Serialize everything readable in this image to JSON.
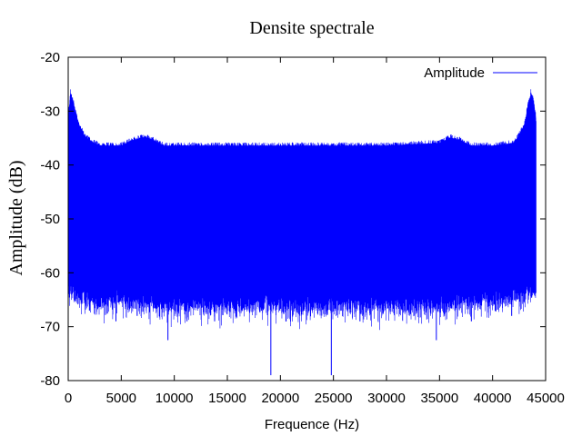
{
  "chart_data": {
    "type": "line",
    "title": "Densite spectrale",
    "xlabel": "Frequence (Hz)",
    "ylabel": "Amplitude (dB)",
    "xlim": [
      0,
      45000
    ],
    "ylim": [
      -80,
      -20
    ],
    "x_ticks": [
      0,
      5000,
      10000,
      15000,
      20000,
      25000,
      30000,
      35000,
      40000,
      45000
    ],
    "y_ticks": [
      -20,
      -30,
      -40,
      -50,
      -60,
      -70,
      -80
    ],
    "grid": false,
    "legend_position": "top-right",
    "series": [
      {
        "name": "Amplitude",
        "color": "#0000ff",
        "x_range": [
          0,
          44100
        ],
        "upper_envelope": {
          "x": [
            0,
            200,
            500,
            1000,
            1500,
            2000,
            3000,
            4000,
            5000,
            6000,
            7000,
            7500,
            8000,
            9000,
            10000,
            15000,
            20000,
            25000,
            30000,
            35000,
            36000,
            37000,
            38000,
            40000,
            42000,
            42500,
            43000,
            43300,
            43600,
            43900,
            44100
          ],
          "y": [
            -32,
            -27,
            -29,
            -33,
            -35,
            -36,
            -37,
            -37,
            -37,
            -36,
            -35.5,
            -35.5,
            -36,
            -37,
            -37,
            -37,
            -37,
            -37,
            -37,
            -36.5,
            -35.5,
            -36,
            -37,
            -37,
            -36.5,
            -35,
            -33,
            -30,
            -27,
            -29,
            -32
          ]
        },
        "lower_envelope": {
          "x": [
            0,
            2000,
            5000,
            10000,
            15000,
            20000,
            25000,
            30000,
            35000,
            40000,
            44100
          ],
          "y": [
            -63,
            -65,
            -65,
            -66,
            -66,
            -66,
            -66,
            -66,
            -66,
            -65,
            -63
          ]
        },
        "dips": [
          {
            "x": 2000,
            "y": -67
          },
          {
            "x": 4500,
            "y": -69
          },
          {
            "x": 6500,
            "y": -68
          },
          {
            "x": 9400,
            "y": -72.5
          },
          {
            "x": 11200,
            "y": -69
          },
          {
            "x": 13800,
            "y": -69
          },
          {
            "x": 19100,
            "y": -79
          },
          {
            "x": 24800,
            "y": -79
          },
          {
            "x": 27500,
            "y": -69
          },
          {
            "x": 34700,
            "y": -72.5
          },
          {
            "x": 38000,
            "y": -69
          },
          {
            "x": 41800,
            "y": -68
          }
        ]
      }
    ]
  }
}
